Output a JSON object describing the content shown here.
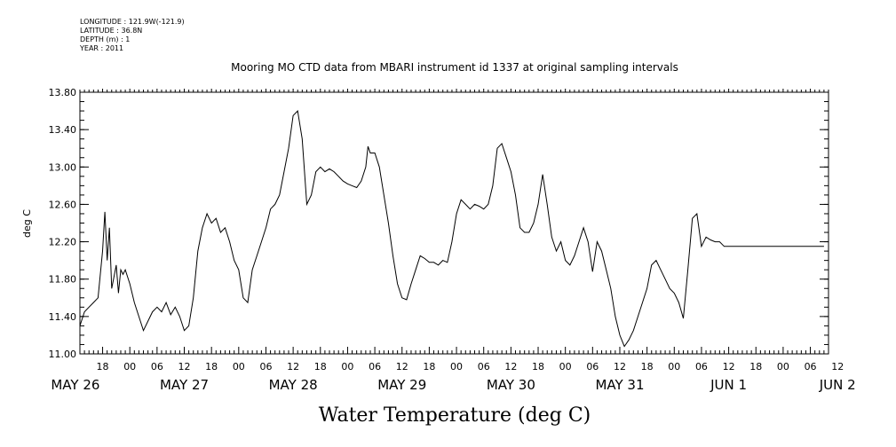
{
  "metadata": {
    "longitude": "LONGITUDE : 121.9W(-121.9)",
    "latitude": "LATITUDE : 36.8N",
    "depth": "DEPTH (m) : 1",
    "year": "YEAR : 2011"
  },
  "chart_data": {
    "type": "line",
    "title": "Mooring MO CTD data from MBARI instrument id 1337 at original sampling intervals",
    "xlabel": "Water Temperature (deg C)",
    "ylabel": "deg C",
    "ylim": [
      11.0,
      13.8
    ],
    "yticks": [
      "11.00",
      "11.40",
      "11.80",
      "12.20",
      "12.60",
      "13.00",
      "13.40",
      "13.80"
    ],
    "xlim_hours": [
      13,
      178
    ],
    "hour_tick_labels": [
      "18",
      "00",
      "06",
      "12",
      "18",
      "00",
      "06",
      "12",
      "18",
      "00",
      "06",
      "12",
      "18",
      "00",
      "06",
      "12",
      "18",
      "00",
      "06",
      "12",
      "18",
      "00",
      "06",
      "12",
      "18",
      "00",
      "06",
      "12"
    ],
    "day_labels": [
      "MAY 26",
      "MAY 27",
      "MAY 28",
      "MAY 29",
      "MAY 30",
      "MAY 31",
      "JUN  1",
      "JUN  2"
    ],
    "series": [
      {
        "x": [
          13,
          14,
          15,
          16,
          17,
          18,
          18.5,
          19,
          19.5,
          20,
          21,
          21.5,
          22,
          22.5,
          23,
          24,
          25,
          26,
          27,
          28,
          29,
          30,
          31,
          32,
          33,
          34,
          35,
          36,
          37,
          38,
          39,
          40,
          41,
          42,
          43,
          44,
          45,
          46,
          47,
          48,
          49,
          50,
          51,
          52,
          53,
          54,
          55,
          56,
          57,
          58,
          59,
          60,
          61,
          62,
          63,
          64,
          65,
          66,
          67,
          68,
          69,
          70,
          71,
          72,
          73,
          74,
          75,
          76,
          76.5,
          77,
          78,
          79,
          80,
          81,
          82,
          83,
          84,
          85,
          86,
          87,
          88,
          89,
          90,
          91,
          92,
          93,
          94,
          95,
          96,
          97,
          98,
          99,
          100,
          101,
          102,
          103,
          104,
          105,
          106,
          107,
          108,
          109,
          110,
          111,
          112,
          113,
          114,
          115,
          116,
          117,
          118,
          119,
          120,
          121,
          122,
          123,
          124,
          125,
          126,
          127,
          128,
          129,
          130,
          131,
          132,
          133,
          134,
          135,
          136,
          137,
          138,
          139,
          140,
          141,
          142,
          143,
          144,
          145,
          146,
          147,
          148,
          149,
          150,
          151,
          152,
          153,
          154,
          155,
          156,
          157,
          158,
          159,
          160,
          161,
          162,
          163,
          164,
          165,
          166,
          167,
          168,
          169,
          170,
          171,
          172,
          173,
          174,
          175,
          176,
          177
        ],
        "y": [
          11.3,
          11.45,
          11.5,
          11.55,
          11.6,
          12.1,
          12.52,
          12.0,
          12.35,
          11.7,
          11.95,
          11.65,
          11.9,
          11.85,
          11.9,
          11.75,
          11.55,
          11.4,
          11.25,
          11.35,
          11.45,
          11.5,
          11.45,
          11.55,
          11.42,
          11.5,
          11.4,
          11.25,
          11.3,
          11.6,
          12.1,
          12.35,
          12.5,
          12.4,
          12.45,
          12.3,
          12.35,
          12.2,
          12.0,
          11.9,
          11.6,
          11.55,
          11.9,
          12.05,
          12.2,
          12.35,
          12.55,
          12.6,
          12.7,
          12.95,
          13.2,
          13.55,
          13.6,
          13.3,
          12.6,
          12.7,
          12.95,
          13.0,
          12.95,
          12.98,
          12.95,
          12.9,
          12.85,
          12.82,
          12.8,
          12.78,
          12.85,
          13.0,
          13.22,
          13.15,
          13.15,
          13.0,
          12.7,
          12.4,
          12.05,
          11.75,
          11.6,
          11.58,
          11.75,
          11.9,
          12.05,
          12.02,
          11.98,
          11.98,
          11.95,
          12.0,
          11.98,
          12.2,
          12.5,
          12.65,
          12.6,
          12.55,
          12.6,
          12.58,
          12.55,
          12.6,
          12.8,
          13.2,
          13.25,
          13.1,
          12.95,
          12.7,
          12.35,
          12.3,
          12.3,
          12.4,
          12.6,
          12.92,
          12.6,
          12.25,
          12.1,
          12.2,
          12.0,
          11.95,
          12.05,
          12.2,
          12.35,
          12.2,
          11.88,
          12.2,
          12.1,
          11.9,
          11.7,
          11.4,
          11.2,
          11.08,
          11.15,
          11.25,
          11.4,
          11.55,
          11.7,
          11.95,
          12.0,
          11.9,
          11.8,
          11.7,
          11.65,
          11.55,
          11.38,
          11.9,
          12.45,
          12.5,
          12.15,
          12.25,
          12.22,
          12.2,
          12.2,
          12.15,
          12.15,
          12.15,
          12.15,
          12.15,
          12.15,
          12.15,
          12.15,
          12.15,
          12.15,
          12.15,
          12.15,
          12.15,
          12.15,
          12.15,
          12.15,
          12.15,
          12.15,
          12.15,
          12.15,
          12.15,
          12.15,
          12.15
        ]
      }
    ],
    "grid": false,
    "color": "#000000"
  }
}
